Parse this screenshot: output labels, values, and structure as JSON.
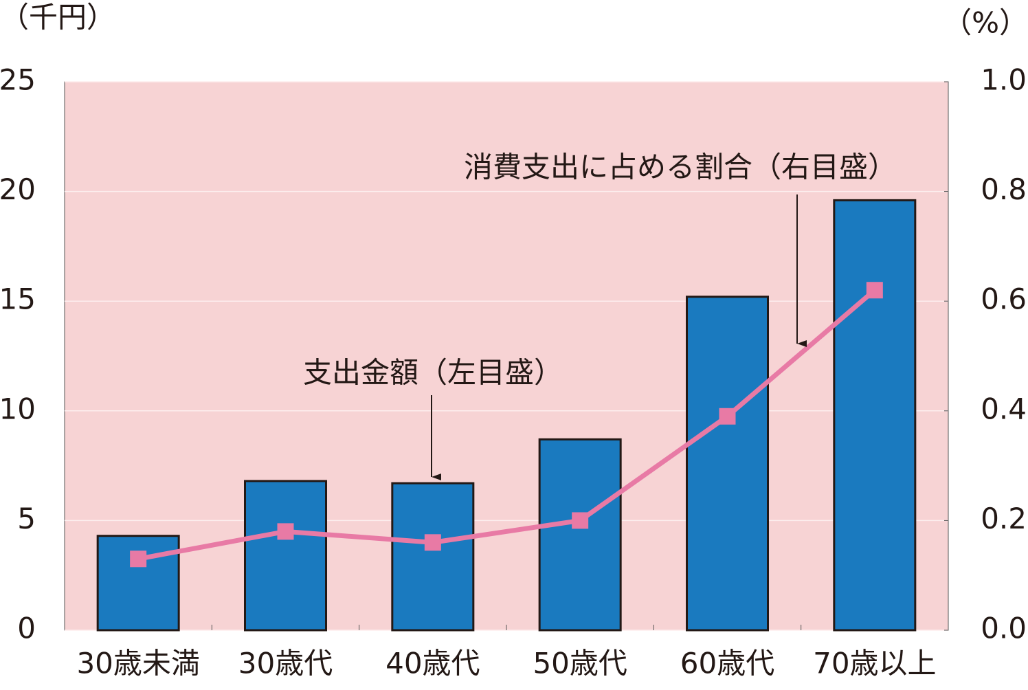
{
  "chart_data": {
    "type": "bar",
    "y_unit_label": "（千円）",
    "y2_unit_label": "（%）",
    "categories": [
      "30歳未満",
      "30歳代",
      "40歳代",
      "50歳代",
      "60歳代",
      "70歳以上"
    ],
    "series": [
      {
        "name": "支出金額（左目盛）",
        "type": "bar",
        "color": "#1a7abf",
        "values": [
          4.3,
          6.8,
          6.7,
          8.7,
          15.2,
          19.6
        ]
      },
      {
        "name": "消費支出に占める割合（右目盛）",
        "type": "line",
        "axis": "y2",
        "color": "#e87aa5",
        "values": [
          0.13,
          0.18,
          0.16,
          0.2,
          0.39,
          0.62
        ]
      }
    ],
    "ylim": [
      0,
      25
    ],
    "yticks": [
      0,
      5,
      10,
      15,
      20,
      25
    ],
    "y2lim": [
      0,
      1.0
    ],
    "y2ticks": [
      {
        "value": 0,
        "label": "0.0"
      },
      0.2,
      0.4,
      0.6,
      0.8,
      {
        "value": 1.0,
        "label": "1.0"
      }
    ],
    "grid": true,
    "background": "#f7d3d4"
  }
}
